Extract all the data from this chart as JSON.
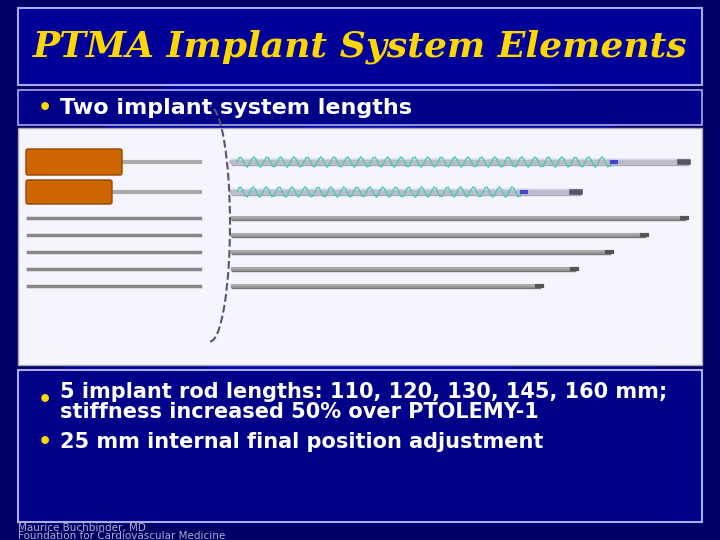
{
  "title": "PTMA Implant System Elements",
  "title_color": "#FFD700",
  "title_fontsize": 26,
  "bg_outer": "#000066",
  "bg_inner": "#0000aa",
  "title_box_face": "#000099",
  "title_box_edge": "#aaaaee",
  "bullet1": "Two implant system lengths",
  "bullet1_color": "#ffffff",
  "bullet1_bullet_color": "#FFD700",
  "bullet1_fontsize": 16,
  "bullet1_box_face": "#000088",
  "bullet1_box_edge": "#aaaaee",
  "image_panel_face": "#f5f5ff",
  "handle_color": "#cc6600",
  "handle_edge": "#994400",
  "coil_color": "#44ccaa",
  "shaft_color": "#ccccdd",
  "wire_color": "#999999",
  "arc_color": "#555577",
  "bullet2_line1": "5 implant rod lengths: 110, 120, 130, 145, 160 mm;",
  "bullet2_line2": "stiffness increased 50% over PTOLEMY-1",
  "bullet3": "25 mm internal final position adjustment",
  "bullet23_color": "#ffffff",
  "bullet23_bullet_color": "#FFD700",
  "bullet23_fontsize": 15,
  "lower_box_face": "#000088",
  "lower_box_edge": "#aaaaee",
  "footer1": "Maurice Buchbinder, MD",
  "footer2": "Foundation for Cardiovascular Medicine",
  "footer_color": "#aaaacc",
  "footer_fontsize": 7.5
}
